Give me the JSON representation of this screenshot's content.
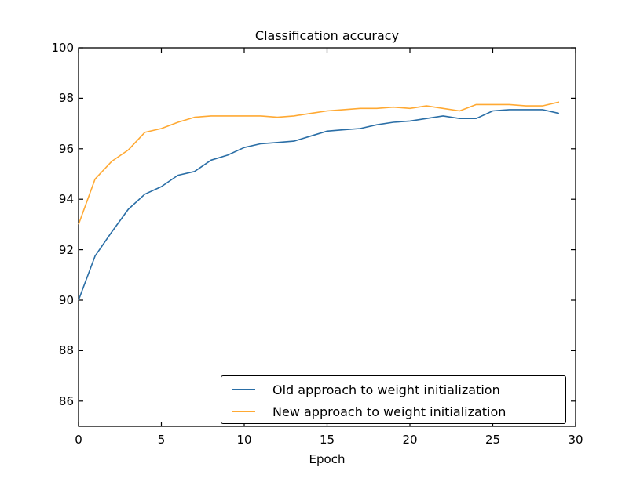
{
  "figure": {
    "background": "#ffffff",
    "axis_color": "#000000",
    "text_color": "#000000"
  },
  "chart_data": {
    "type": "line",
    "title": "Classification accuracy",
    "xlabel": "Epoch",
    "ylabel": "",
    "xlim": [
      0,
      30
    ],
    "ylim": [
      85,
      100
    ],
    "xticks": [
      0,
      5,
      10,
      15,
      20,
      25,
      30
    ],
    "yticks": [
      86,
      88,
      90,
      92,
      94,
      96,
      98,
      100
    ],
    "grid": false,
    "legend_position": "lower right",
    "x": [
      0,
      1,
      2,
      3,
      4,
      5,
      6,
      7,
      8,
      9,
      10,
      11,
      12,
      13,
      14,
      15,
      16,
      17,
      18,
      19,
      20,
      21,
      22,
      23,
      24,
      25,
      26,
      27,
      28,
      29
    ],
    "series": [
      {
        "name": "Old approach to weight initialization",
        "color": "#2a6ea6",
        "values": [
          90.0,
          91.75,
          92.7,
          93.6,
          94.2,
          94.5,
          94.95,
          95.1,
          95.55,
          95.75,
          96.05,
          96.2,
          96.25,
          96.3,
          96.5,
          96.7,
          96.75,
          96.8,
          96.95,
          97.05,
          97.1,
          97.2,
          97.3,
          97.2,
          97.2,
          97.5,
          97.55,
          97.55,
          97.55,
          97.4
        ]
      },
      {
        "name": "New approach to weight initialization",
        "color": "#ffa933",
        "values": [
          93.0,
          94.8,
          95.5,
          95.95,
          96.65,
          96.8,
          97.05,
          97.25,
          97.3,
          97.3,
          97.3,
          97.3,
          97.25,
          97.3,
          97.4,
          97.5,
          97.55,
          97.6,
          97.6,
          97.65,
          97.6,
          97.7,
          97.6,
          97.5,
          97.75,
          97.75,
          97.75,
          97.7,
          97.7,
          97.85
        ]
      }
    ]
  }
}
